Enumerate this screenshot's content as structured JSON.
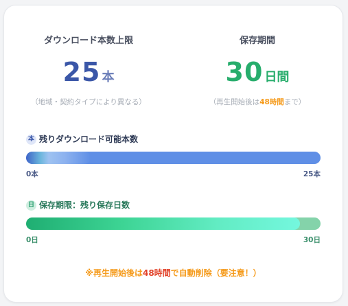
{
  "download_limit": {
    "title": "ダウンロード本数上限",
    "value": "25",
    "unit": "本",
    "note": "（地域・契約タイプにより異なる）"
  },
  "storage_period": {
    "title": "保存期間",
    "value": "30",
    "unit": "日間",
    "note_prefix": "（再生開始後は",
    "note_highlight": "48時間",
    "note_suffix": "まで）"
  },
  "remaining_downloads": {
    "badge": "本",
    "label": "残りダウンロード可能本数",
    "min_label": "0本",
    "max_label": "25本",
    "fill_fraction": 0.22,
    "color_track": "#5f8fe6",
    "color_fill_start": "#3f64c8"
  },
  "remaining_storage": {
    "badge": "日",
    "label": "保存期限：残り保存日数",
    "min_label": "0日",
    "max_label": "30日",
    "fill_fraction": 0.93,
    "color_track": "#84d3aa",
    "color_fill_start": "#1fae72"
  },
  "warning": {
    "prefix": "※再生開始後は",
    "highlight": "48時間",
    "suffix": "で自動削除（要注意！）",
    "color": "#f59a1a",
    "highlight_color": "#e2432a"
  }
}
